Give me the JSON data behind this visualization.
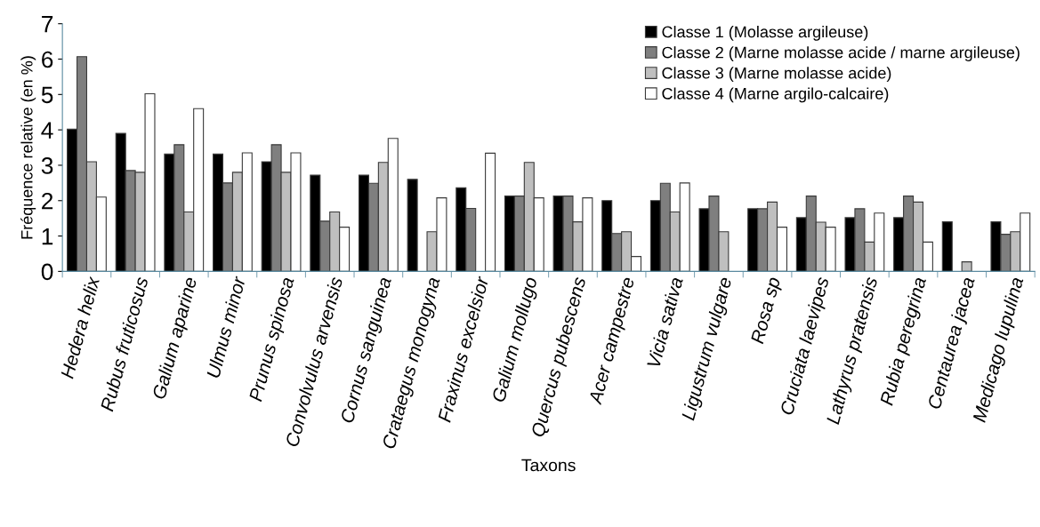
{
  "chart_data": {
    "type": "bar",
    "xlabel": "Taxons",
    "ylabel": "Fréquence relative (en %)",
    "categories": [
      "Hedera helix",
      "Rubus fruticosus",
      "Galium aparine",
      "Ulmus minor",
      "Prunus spinosa",
      "Convolvulus arvensis",
      "Cornus sanguinea",
      "Crataegus monogyna",
      "Fraxinus excelsior",
      "Galium mollugo",
      "Quercus pubescens",
      "Acer campestre",
      "Vicia sativa",
      "Ligustrum vulgare",
      "Rosa sp",
      "Cruciata laevipes",
      "Lathyrus pratensis",
      "Rubia peregrina",
      "Centaurea jacea",
      "Medicago lupulina"
    ],
    "series": [
      {
        "name": "Classe 1 (Molasse argileuse)",
        "color": "#000000",
        "values": [
          4.02,
          3.9,
          3.32,
          3.32,
          3.1,
          2.72,
          2.72,
          2.6,
          2.36,
          2.13,
          2.13,
          2.0,
          2.0,
          1.77,
          1.77,
          1.52,
          1.52,
          1.52,
          1.4,
          1.4
        ]
      },
      {
        "name": "Classe 2 (Marne molasse acide / marne argileuse)",
        "color": "#7f7f7f",
        "values": [
          6.07,
          2.85,
          3.58,
          2.5,
          3.58,
          1.42,
          2.49,
          null,
          1.78,
          2.13,
          2.13,
          1.07,
          2.49,
          2.13,
          1.77,
          2.13,
          1.77,
          2.13,
          null,
          1.05
        ]
      },
      {
        "name": "Classe 3 (Marne molasse acide)",
        "color": "#bfbfbf",
        "values": [
          3.1,
          2.8,
          1.68,
          2.8,
          2.8,
          1.68,
          3.08,
          1.12,
          null,
          3.08,
          1.4,
          1.12,
          1.68,
          1.12,
          1.96,
          1.39,
          0.83,
          1.96,
          0.27,
          1.12
        ]
      },
      {
        "name": "Classe 4 (Marne argilo-calcaire)",
        "color": "#ffffff",
        "values": [
          2.1,
          5.02,
          4.6,
          3.35,
          3.35,
          1.25,
          3.76,
          2.08,
          3.34,
          2.08,
          2.08,
          0.42,
          2.5,
          null,
          1.25,
          1.25,
          1.65,
          0.83,
          null,
          1.65
        ]
      }
    ],
    "ylim": [
      0,
      7
    ],
    "yticks": [
      0,
      1,
      2,
      3,
      4,
      5,
      6,
      7
    ],
    "grid": false,
    "legend": "top right"
  }
}
